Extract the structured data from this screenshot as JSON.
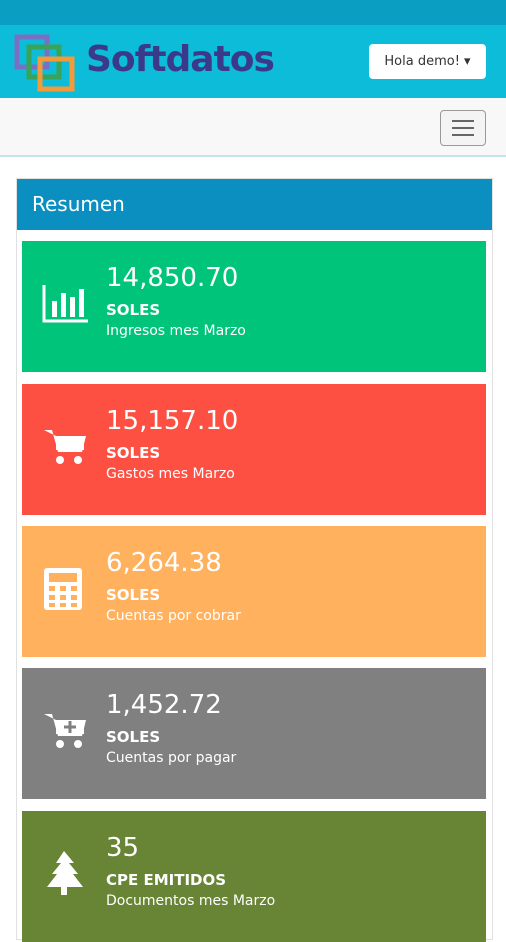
{
  "header": {
    "brand": "Softdatos",
    "user_button": "Hola demo!"
  },
  "panel": {
    "title": "Resumen",
    "cards": [
      {
        "value": "14,850.70",
        "unit": "SOLES",
        "label": "Ingresos mes Marzo"
      },
      {
        "value": "15,157.10",
        "unit": "SOLES",
        "label": "Gastos mes Marzo"
      },
      {
        "value": "6,264.38",
        "unit": "SOLES",
        "label": "Cuentas por cobrar"
      },
      {
        "value": "1,452.72",
        "unit": "SOLES",
        "label": "Cuentas por pagar"
      },
      {
        "value": "35",
        "unit": "CPE EMITIDOS",
        "label": "Documentos mes Marzo"
      }
    ]
  }
}
